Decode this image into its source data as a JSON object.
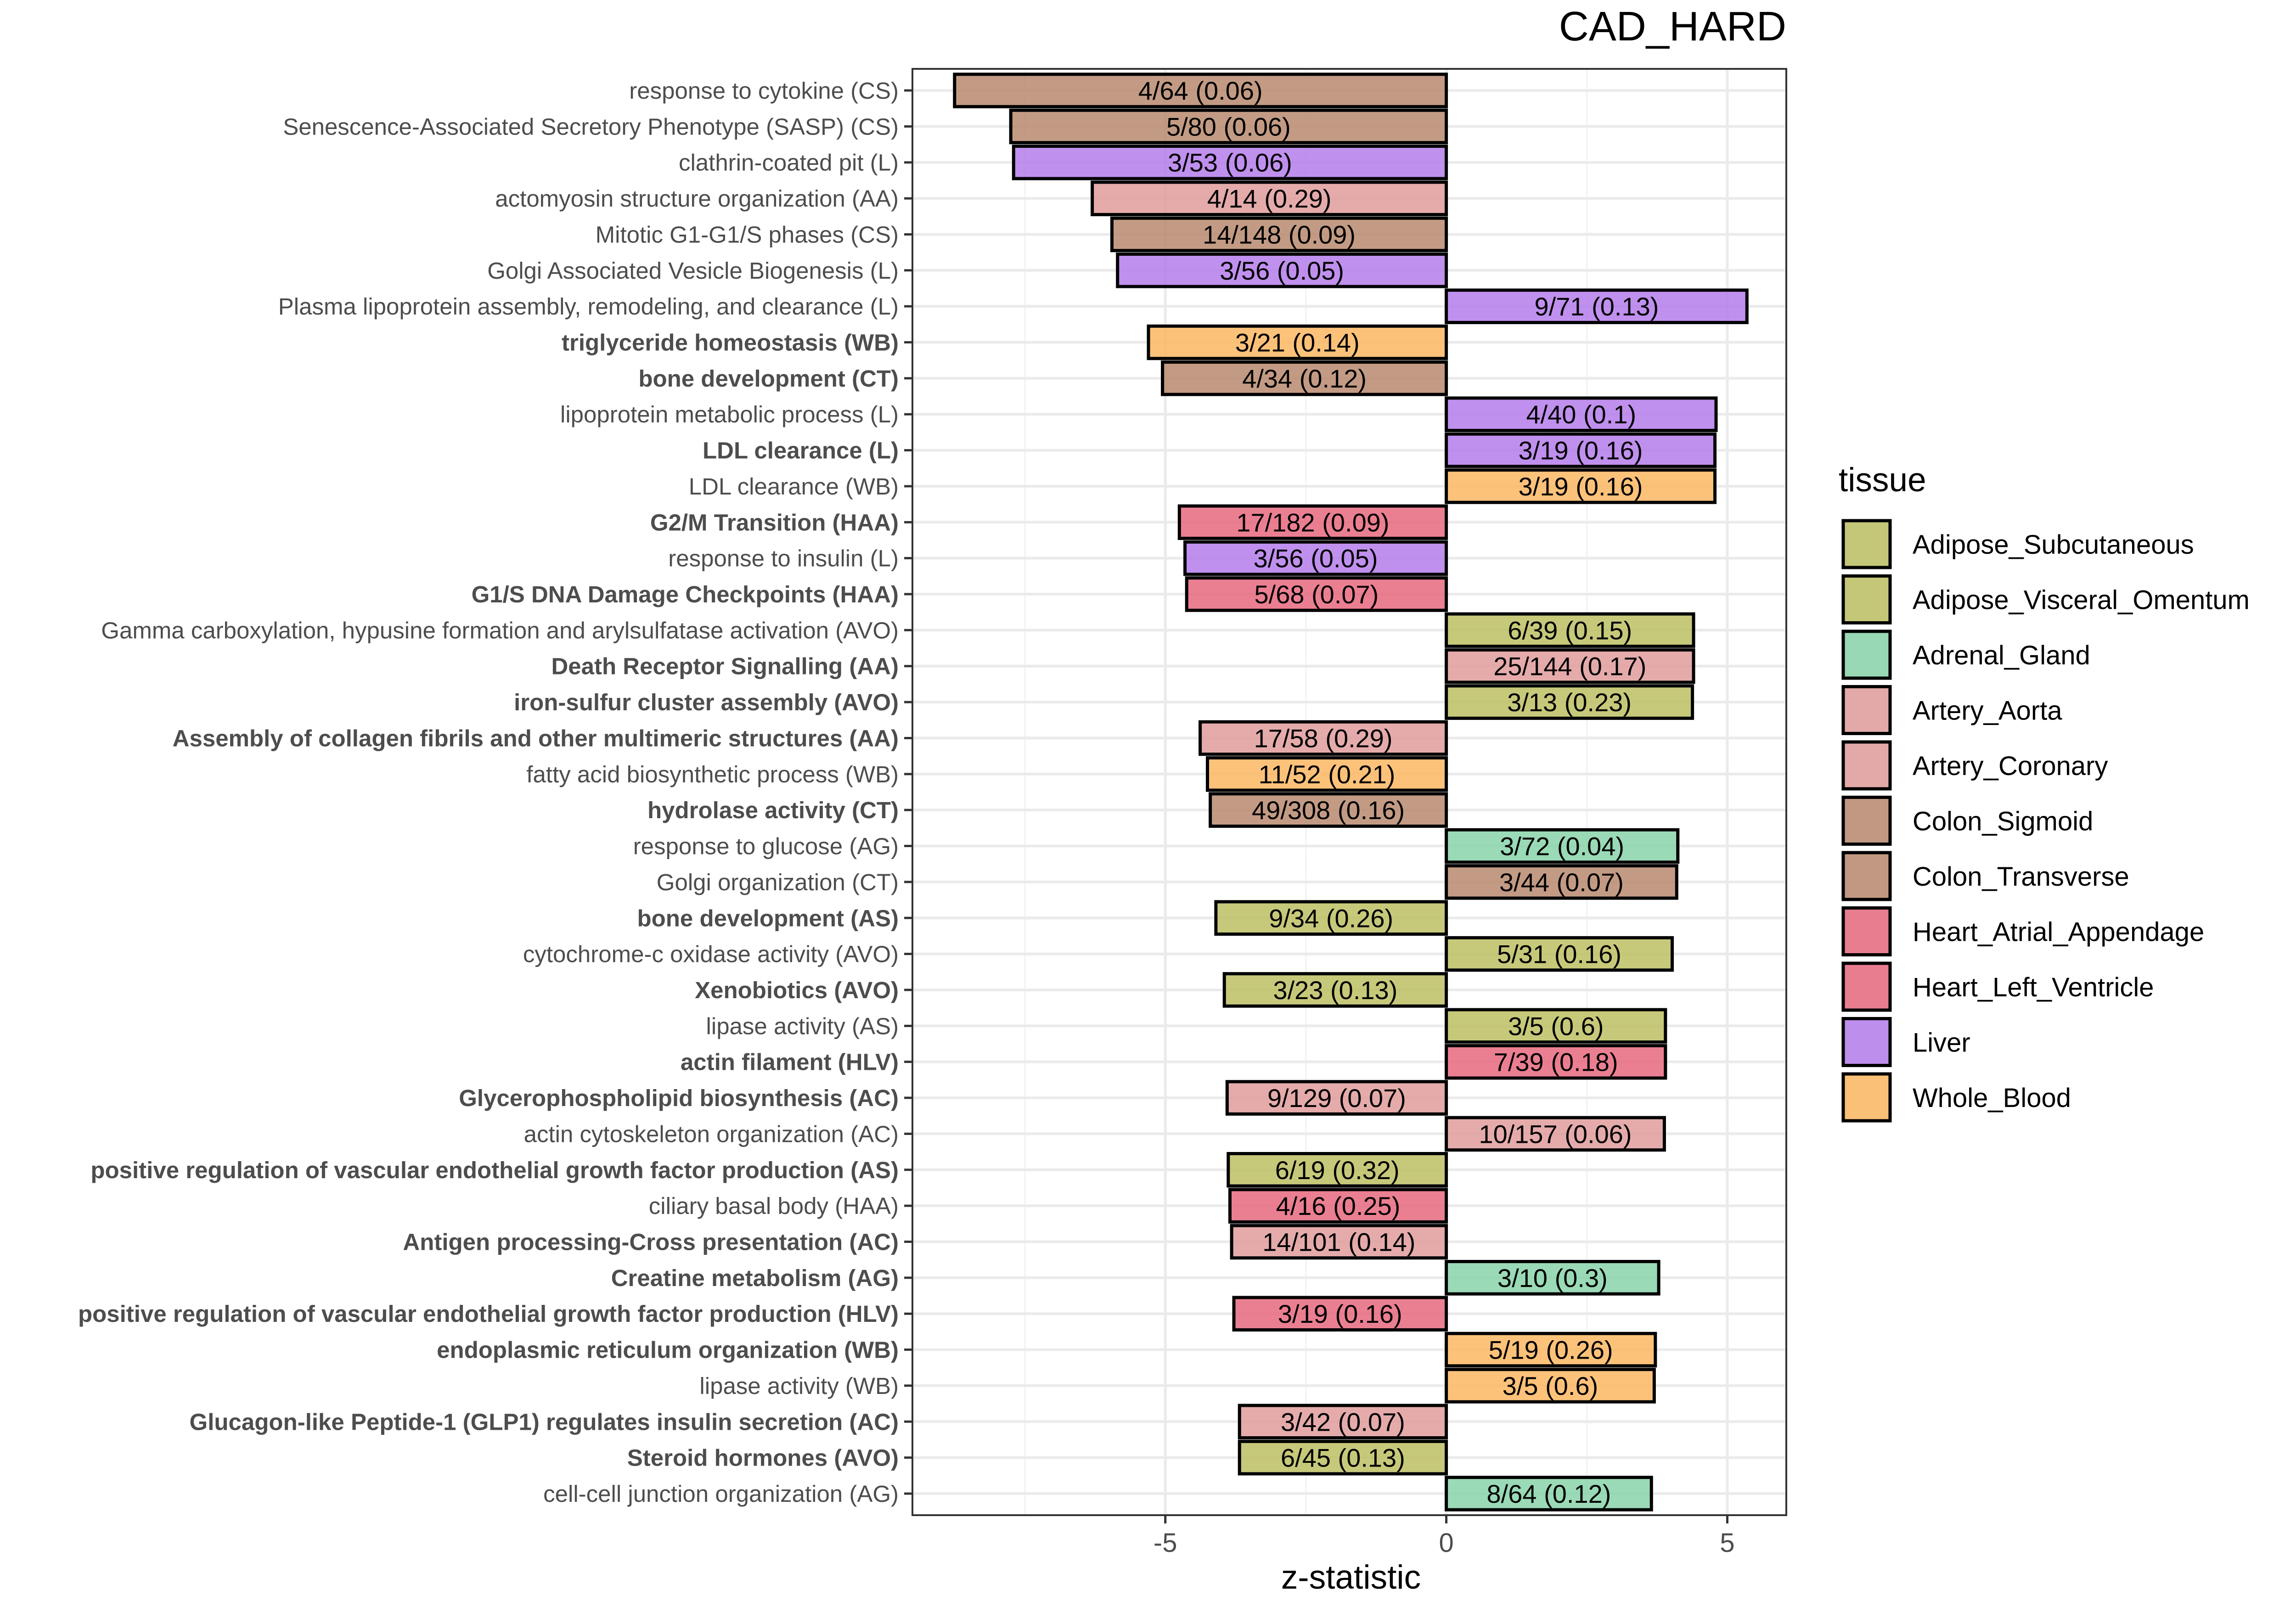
{
  "chart_data": {
    "type": "bar",
    "orientation": "horizontal",
    "title": "CAD_HARD",
    "xlabel": "z-statistic",
    "ylabel": "",
    "xlim": [
      -9.5,
      6.05
    ],
    "x_ticks": [
      -5,
      0,
      5
    ],
    "x_tick_labels": [
      "-5",
      "0",
      "5"
    ],
    "grid": true,
    "legend_title": "tissue",
    "legend_position": "right",
    "legend": [
      {
        "name": "Adipose_Subcutaneous",
        "color": "#BDBF63"
      },
      {
        "name": "Adipose_Visceral_Omentum",
        "color": "#BDBF63"
      },
      {
        "name": "Adrenal_Gland",
        "color": "#88D4A9"
      },
      {
        "name": "Artery_Aorta",
        "color": "#E09C9C"
      },
      {
        "name": "Artery_Coronary",
        "color": "#E09C9C"
      },
      {
        "name": "Colon_Sigmoid",
        "color": "#B88A6E"
      },
      {
        "name": "Colon_Transverse",
        "color": "#B88A6E"
      },
      {
        "name": "Heart_Atrial_Appendage",
        "color": "#E8697F"
      },
      {
        "name": "Heart_Left_Ventricle",
        "color": "#E8697F"
      },
      {
        "name": "Liver",
        "color": "#B57CEB"
      },
      {
        "name": "Whole_Blood",
        "color": "#FDB763"
      }
    ],
    "bars": [
      {
        "label": "response to cytokine (CS)",
        "bold": false,
        "value": -8.75,
        "text": "4/64 (0.06)",
        "tissue": "Colon_Sigmoid"
      },
      {
        "label": "Senescence-Associated Secretory Phenotype (SASP) (CS)",
        "bold": false,
        "value": -7.75,
        "text": "5/80 (0.06)",
        "tissue": "Colon_Sigmoid"
      },
      {
        "label": "clathrin-coated pit (L)",
        "bold": false,
        "value": -7.7,
        "text": "3/53 (0.06)",
        "tissue": "Liver"
      },
      {
        "label": "actomyosin structure organization (AA)",
        "bold": false,
        "value": -6.3,
        "text": "4/14 (0.29)",
        "tissue": "Artery_Aorta"
      },
      {
        "label": "Mitotic G1-G1/S phases (CS)",
        "bold": false,
        "value": -5.95,
        "text": "14/148 (0.09)",
        "tissue": "Colon_Sigmoid"
      },
      {
        "label": "Golgi Associated Vesicle Biogenesis (L)",
        "bold": false,
        "value": -5.85,
        "text": "3/56 (0.05)",
        "tissue": "Liver"
      },
      {
        "label": "Plasma lipoprotein assembly, remodeling, and clearance (L)",
        "bold": false,
        "value": 5.35,
        "text": "9/71 (0.13)",
        "tissue": "Liver"
      },
      {
        "label": "triglyceride homeostasis (WB)",
        "bold": true,
        "value": -5.3,
        "text": "3/21 (0.14)",
        "tissue": "Whole_Blood"
      },
      {
        "label": "bone development (CT)",
        "bold": true,
        "value": -5.05,
        "text": "4/34 (0.12)",
        "tissue": "Colon_Transverse"
      },
      {
        "label": "lipoprotein metabolic process (L)",
        "bold": false,
        "value": 4.8,
        "text": "4/40 (0.1)",
        "tissue": "Liver"
      },
      {
        "label": "LDL clearance (L)",
        "bold": true,
        "value": 4.78,
        "text": "3/19 (0.16)",
        "tissue": "Liver"
      },
      {
        "label": "LDL clearance (WB)",
        "bold": false,
        "value": 4.78,
        "text": "3/19 (0.16)",
        "tissue": "Whole_Blood"
      },
      {
        "label": "G2/M Transition (HAA)",
        "bold": true,
        "value": -4.75,
        "text": "17/182 (0.09)",
        "tissue": "Heart_Atrial_Appendage"
      },
      {
        "label": "response to insulin (L)",
        "bold": false,
        "value": -4.65,
        "text": "3/56 (0.05)",
        "tissue": "Liver"
      },
      {
        "label": "G1/S DNA Damage Checkpoints (HAA)",
        "bold": true,
        "value": -4.62,
        "text": "5/68 (0.07)",
        "tissue": "Heart_Atrial_Appendage"
      },
      {
        "label": "Gamma carboxylation, hypusine formation and arylsulfatase activation (AVO)",
        "bold": false,
        "value": 4.4,
        "text": "6/39 (0.15)",
        "tissue": "Adipose_Visceral_Omentum"
      },
      {
        "label": "Death Receptor Signalling (AA)",
        "bold": true,
        "value": 4.4,
        "text": "25/144 (0.17)",
        "tissue": "Artery_Aorta"
      },
      {
        "label": "iron-sulfur cluster assembly (AVO)",
        "bold": true,
        "value": 4.38,
        "text": "3/13 (0.23)",
        "tissue": "Adipose_Visceral_Omentum"
      },
      {
        "label": "Assembly of collagen fibrils and other multimeric structures (AA)",
        "bold": true,
        "value": -4.38,
        "text": "17/58 (0.29)",
        "tissue": "Artery_Aorta"
      },
      {
        "label": "fatty acid biosynthetic process (WB)",
        "bold": false,
        "value": -4.25,
        "text": "11/52 (0.21)",
        "tissue": "Whole_Blood"
      },
      {
        "label": "hydrolase activity (CT)",
        "bold": true,
        "value": -4.2,
        "text": "49/308 (0.16)",
        "tissue": "Colon_Transverse"
      },
      {
        "label": "response to glucose (AG)",
        "bold": false,
        "value": 4.12,
        "text": "3/72 (0.04)",
        "tissue": "Adrenal_Gland"
      },
      {
        "label": "Golgi organization (CT)",
        "bold": false,
        "value": 4.1,
        "text": "3/44 (0.07)",
        "tissue": "Colon_Transverse"
      },
      {
        "label": "bone development (AS)",
        "bold": true,
        "value": -4.1,
        "text": "9/34 (0.26)",
        "tissue": "Adipose_Subcutaneous"
      },
      {
        "label": "cytochrome-c oxidase activity (AVO)",
        "bold": false,
        "value": 4.02,
        "text": "5/31 (0.16)",
        "tissue": "Adipose_Visceral_Omentum"
      },
      {
        "label": "Xenobiotics (AVO)",
        "bold": true,
        "value": -3.95,
        "text": "3/23 (0.13)",
        "tissue": "Adipose_Visceral_Omentum"
      },
      {
        "label": "lipase activity (AS)",
        "bold": false,
        "value": 3.9,
        "text": "3/5 (0.6)",
        "tissue": "Adipose_Subcutaneous"
      },
      {
        "label": "actin filament (HLV)",
        "bold": true,
        "value": 3.9,
        "text": "7/39 (0.18)",
        "tissue": "Heart_Left_Ventricle"
      },
      {
        "label": "Glycerophospholipid biosynthesis (AC)",
        "bold": true,
        "value": -3.9,
        "text": "9/129 (0.07)",
        "tissue": "Artery_Coronary"
      },
      {
        "label": "actin cytoskeleton organization (AC)",
        "bold": false,
        "value": 3.88,
        "text": "10/157 (0.06)",
        "tissue": "Artery_Coronary"
      },
      {
        "label": "positive regulation of vascular endothelial growth factor production (AS)",
        "bold": true,
        "value": -3.88,
        "text": "6/19 (0.32)",
        "tissue": "Adipose_Subcutaneous"
      },
      {
        "label": "ciliary basal body (HAA)",
        "bold": false,
        "value": -3.85,
        "text": "4/16 (0.25)",
        "tissue": "Heart_Atrial_Appendage"
      },
      {
        "label": "Antigen processing-Cross presentation (AC)",
        "bold": true,
        "value": -3.82,
        "text": "14/101 (0.14)",
        "tissue": "Artery_Coronary"
      },
      {
        "label": "Creatine metabolism (AG)",
        "bold": true,
        "value": 3.78,
        "text": "3/10 (0.3)",
        "tissue": "Adrenal_Gland"
      },
      {
        "label": "positive regulation of vascular endothelial growth factor production (HLV)",
        "bold": true,
        "value": -3.78,
        "text": "3/19 (0.16)",
        "tissue": "Heart_Left_Ventricle"
      },
      {
        "label": "endoplasmic reticulum organization (WB)",
        "bold": true,
        "value": 3.72,
        "text": "5/19 (0.26)",
        "tissue": "Whole_Blood"
      },
      {
        "label": "lipase activity (WB)",
        "bold": false,
        "value": 3.7,
        "text": "3/5 (0.6)",
        "tissue": "Whole_Blood"
      },
      {
        "label": "Glucagon-like Peptide-1 (GLP1) regulates insulin secretion (AC)",
        "bold": true,
        "value": -3.68,
        "text": "3/42 (0.07)",
        "tissue": "Artery_Coronary"
      },
      {
        "label": "Steroid hormones (AVO)",
        "bold": true,
        "value": -3.68,
        "text": "6/45 (0.13)",
        "tissue": "Adipose_Visceral_Omentum"
      },
      {
        "label": "cell-cell junction organization (AG)",
        "bold": false,
        "value": 3.65,
        "text": "8/64 (0.12)",
        "tissue": "Adrenal_Gland"
      }
    ]
  }
}
